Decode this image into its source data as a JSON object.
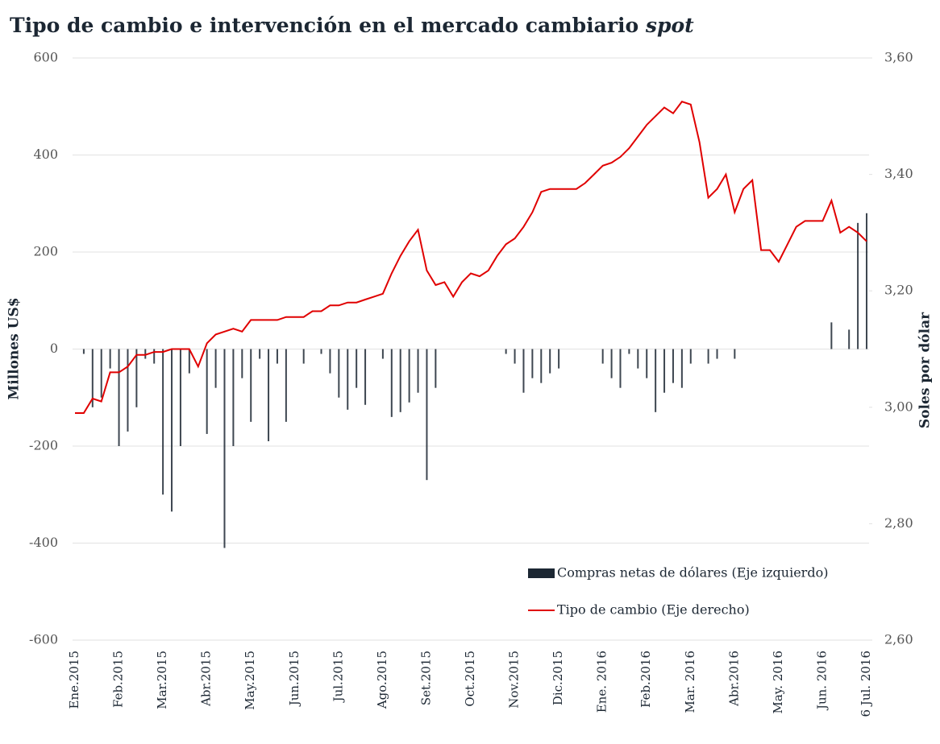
{
  "chart_data": {
    "type": "bar-line",
    "title": [
      "Tipo de cambio e intervención en el mercado cambiario",
      "spot"
    ],
    "ylabel": "Millones US$",
    "y2label": "Soles por dólar",
    "categories": [
      "Ene.2015",
      null,
      null,
      null,
      null,
      "Feb.2015",
      null,
      null,
      null,
      null,
      "Mar.2015",
      null,
      null,
      null,
      null,
      "Abr.2015",
      null,
      null,
      null,
      null,
      "May.2015",
      null,
      null,
      null,
      null,
      "Jun.2015",
      null,
      null,
      null,
      null,
      "Jul.2015",
      null,
      null,
      null,
      null,
      "Ago.2015",
      null,
      null,
      null,
      null,
      "Set.2015",
      null,
      null,
      null,
      null,
      "Oct.2015",
      null,
      null,
      null,
      null,
      "Nov.2015",
      null,
      null,
      null,
      null,
      "Dic.2015",
      null,
      null,
      null,
      null,
      "Ene. 2016",
      null,
      null,
      null,
      null,
      "Feb.2016",
      null,
      null,
      null,
      null,
      "Mar. 2016",
      null,
      null,
      null,
      null,
      "Abr.2016",
      null,
      null,
      null,
      null,
      "May. 2016",
      null,
      null,
      null,
      null,
      "Jun. 2016",
      null,
      null,
      null,
      null,
      "6 Jul. 2016"
    ],
    "series": [
      {
        "name": "Compras netas de dólares (Eje izquierdo)",
        "color": "#1c2733",
        "values": [
          0,
          -10,
          -120,
          -100,
          -40,
          -200,
          -170,
          -120,
          -20,
          -30,
          -300,
          -335,
          -200,
          -50,
          0,
          -175,
          -80,
          -410,
          -200,
          -60,
          -150,
          -20,
          -190,
          -30,
          -150,
          0,
          -30,
          0,
          -10,
          -50,
          -100,
          -125,
          -80,
          -115,
          0,
          -20,
          -140,
          -130,
          -110,
          -90,
          -270,
          -80,
          0,
          0,
          0,
          0,
          0,
          0,
          0,
          -10,
          -30,
          -90,
          -60,
          -70,
          -50,
          -40,
          0,
          0,
          0,
          0,
          -30,
          -60,
          -80,
          -10,
          -40,
          -60,
          -130,
          -90,
          -70,
          -80,
          -30,
          0,
          -30,
          -20,
          0,
          -20,
          0,
          0,
          0,
          0,
          0,
          0,
          0,
          0,
          0,
          0,
          55,
          0,
          40,
          260,
          280
        ]
      },
      {
        "name": "Tipo de cambio (Eje derecho)",
        "color": "#e00000",
        "axis": "y2",
        "values": [
          2.99,
          2.99,
          3.015,
          3.01,
          3.06,
          3.06,
          3.07,
          3.09,
          3.09,
          3.095,
          3.095,
          3.1,
          3.1,
          3.1,
          3.07,
          3.11,
          3.125,
          3.13,
          3.135,
          3.13,
          3.15,
          3.15,
          3.15,
          3.15,
          3.155,
          3.155,
          3.155,
          3.165,
          3.165,
          3.175,
          3.175,
          3.18,
          3.18,
          3.185,
          3.19,
          3.195,
          3.23,
          3.26,
          3.285,
          3.305,
          3.235,
          3.21,
          3.215,
          3.19,
          3.215,
          3.23,
          3.225,
          3.235,
          3.26,
          3.28,
          3.29,
          3.31,
          3.335,
          3.37,
          3.375,
          3.375,
          3.375,
          3.375,
          3.385,
          3.4,
          3.415,
          3.42,
          3.43,
          3.445,
          3.465,
          3.485,
          3.5,
          3.515,
          3.505,
          3.525,
          3.52,
          3.455,
          3.36,
          3.375,
          3.4,
          3.335,
          3.375,
          3.39,
          3.27,
          3.27,
          3.25,
          3.28,
          3.31,
          3.32,
          3.32,
          3.32,
          3.355,
          3.3,
          3.31,
          3.3,
          3.285
        ]
      }
    ],
    "ylim": [
      -600,
      600
    ],
    "yticks": [
      -600,
      -400,
      -200,
      0,
      200,
      400,
      600
    ],
    "y2lim": [
      2.6,
      3.6
    ],
    "y2ticks": [
      {
        "value": 2.6,
        "label": "2,60"
      },
      {
        "value": 2.8,
        "label": "2,80"
      },
      {
        "value": 3.0,
        "label": "3,00"
      },
      {
        "value": 3.2,
        "label": "3,20"
      },
      {
        "value": 3.4,
        "label": "3,40"
      },
      {
        "value": 3.6,
        "label": "3,60"
      }
    ],
    "grid": true,
    "legend": "lower right"
  }
}
